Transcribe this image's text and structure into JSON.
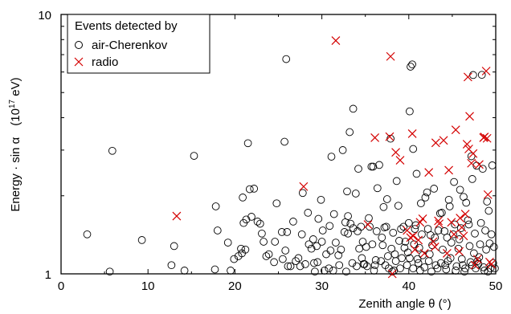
{
  "chart_data": {
    "type": "scatter",
    "xlabel": "Zenith angle θ (°)",
    "ylabel_main": "Energy · sin α",
    "ylabel_unit_prefix": "(10",
    "ylabel_unit_exp": "17",
    "ylabel_unit_suffix": " eV)",
    "xlim": [
      0,
      50
    ],
    "ylim": [
      1,
      10
    ],
    "yscale": "log",
    "x_ticks": [
      0,
      10,
      20,
      30,
      40,
      50
    ],
    "x_tick_labels": [
      "0",
      "10",
      "20",
      "30",
      "40",
      "50"
    ],
    "y_tick_labels": {
      "min": "1",
      "max": "10"
    },
    "grid": false,
    "legend": {
      "title": "Events detected by",
      "placement": "top-left",
      "entries": [
        {
          "label": "air-Cherenkov",
          "marker": "circle"
        },
        {
          "label": "radio",
          "marker": "x"
        }
      ]
    },
    "colors": {
      "cherenkov": "#000000",
      "radio": "#d40000"
    },
    "series": [
      {
        "name": "air-Cherenkov",
        "points": [
          [
            3.0,
            1.42
          ],
          [
            5.6,
            1.02
          ],
          [
            5.9,
            2.98
          ],
          [
            9.3,
            1.35
          ],
          [
            12.7,
            1.08
          ],
          [
            13.0,
            1.28
          ],
          [
            14.2,
            1.03
          ],
          [
            15.3,
            2.85
          ],
          [
            17.7,
            1.04
          ],
          [
            17.8,
            1.82
          ],
          [
            18.0,
            1.47
          ],
          [
            19.2,
            1.32
          ],
          [
            20.4,
            1.17
          ],
          [
            20.7,
            1.25
          ],
          [
            21.0,
            1.57
          ],
          [
            21.3,
            1.62
          ],
          [
            20.9,
            1.97
          ],
          [
            20.8,
            1.2
          ],
          [
            21.2,
            1.24
          ],
          [
            21.9,
            1.66
          ],
          [
            22.6,
            1.59
          ],
          [
            22.2,
            2.13
          ],
          [
            23.3,
            1.33
          ],
          [
            23.6,
            1.17
          ],
          [
            23.9,
            1.19
          ],
          [
            24.5,
            1.11
          ],
          [
            24.8,
            1.87
          ],
          [
            25.4,
            1.45
          ],
          [
            25.5,
            1.14
          ],
          [
            25.8,
            1.23
          ],
          [
            26.1,
            1.07
          ],
          [
            26.4,
            1.07
          ],
          [
            27.0,
            1.12
          ],
          [
            27.5,
            1.07
          ],
          [
            27.7,
            1.42
          ],
          [
            27.8,
            2.05
          ],
          [
            28.4,
            1.72
          ],
          [
            28.5,
            1.3
          ],
          [
            29.0,
            1.36
          ],
          [
            29.4,
            1.28
          ],
          [
            29.5,
            1.11
          ],
          [
            29.9,
            1.93
          ],
          [
            30.0,
            1.33
          ],
          [
            30.5,
            1.19
          ],
          [
            30.8,
            1.05
          ],
          [
            31.1,
            2.83
          ],
          [
            31.4,
            1.7
          ],
          [
            32.0,
            1.08
          ],
          [
            32.4,
            3.0
          ],
          [
            32.7,
            1.58
          ],
          [
            32.9,
            2.08
          ],
          [
            33.0,
            1.43
          ],
          [
            33.3,
            1.56
          ],
          [
            33.5,
            1.1
          ],
          [
            33.6,
            1.5
          ],
          [
            34.0,
            1.07
          ],
          [
            34.3,
            1.25
          ],
          [
            34.6,
            1.15
          ],
          [
            34.8,
            1.09
          ],
          [
            35.2,
            1.07
          ],
          [
            35.5,
            1.52
          ],
          [
            35.7,
            2.59
          ],
          [
            36.2,
            1.13
          ],
          [
            36.4,
            2.14
          ],
          [
            36.8,
            1.12
          ],
          [
            37.0,
            1.29
          ],
          [
            37.2,
            1.51
          ],
          [
            37.4,
            1.52
          ],
          [
            37.7,
            1.05
          ],
          [
            38.0,
            1.25
          ],
          [
            38.3,
            1.03
          ],
          [
            38.5,
            1.12
          ],
          [
            38.9,
            1.34
          ],
          [
            39.2,
            1.15
          ],
          [
            39.4,
            1.52
          ],
          [
            39.5,
            1.26
          ],
          [
            39.8,
            1.08
          ],
          [
            40.0,
            1.57
          ],
          [
            40.1,
            1.15
          ],
          [
            40.5,
            1.05
          ],
          [
            40.8,
            1.54
          ],
          [
            41.0,
            1.14
          ],
          [
            41.2,
            1.26
          ],
          [
            41.6,
            1.18
          ],
          [
            41.8,
            1.06
          ],
          [
            42.1,
            2.06
          ],
          [
            42.3,
            1.12
          ],
          [
            42.7,
            1.29
          ],
          [
            43.0,
            1.38
          ],
          [
            43.3,
            1.05
          ],
          [
            43.6,
            1.71
          ],
          [
            43.9,
            1.24
          ],
          [
            44.2,
            1.08
          ],
          [
            44.6,
            1.93
          ],
          [
            44.8,
            1.15
          ],
          [
            45.3,
            1.55
          ],
          [
            45.5,
            1.07
          ],
          [
            45.8,
            1.36
          ],
          [
            46.1,
            1.14
          ],
          [
            46.3,
            1.98
          ],
          [
            46.5,
            1.05
          ],
          [
            46.8,
            1.61
          ],
          [
            47.0,
            1.28
          ],
          [
            47.3,
            1.08
          ],
          [
            47.6,
            1.43
          ],
          [
            47.9,
            1.12
          ],
          [
            48.3,
            1.57
          ],
          [
            48.6,
            1.06
          ],
          [
            48.9,
            1.24
          ],
          [
            49.2,
            1.75
          ],
          [
            49.5,
            1.42
          ],
          [
            49.7,
            1.1
          ],
          [
            49.9,
            1.05
          ],
          [
            49.6,
            2.62
          ],
          [
            48.5,
            2.54
          ],
          [
            49.0,
            1.9
          ],
          [
            47.8,
            2.61
          ],
          [
            47.2,
            2.84
          ],
          [
            46.6,
            1.88
          ],
          [
            47.3,
            2.32
          ],
          [
            45.9,
            2.11
          ],
          [
            45.2,
            2.26
          ],
          [
            44.7,
            1.82
          ],
          [
            43.8,
            1.72
          ],
          [
            42.9,
            2.13
          ],
          [
            41.9,
            1.97
          ],
          [
            41.4,
            1.87
          ],
          [
            40.9,
            2.43
          ],
          [
            40.5,
            3.03
          ],
          [
            40.1,
            4.23
          ],
          [
            40.2,
            6.29
          ],
          [
            40.4,
            6.42
          ],
          [
            38.6,
            2.28
          ],
          [
            38.8,
            1.83
          ],
          [
            37.9,
            3.32
          ],
          [
            37.5,
            1.94
          ],
          [
            37.1,
            1.81
          ],
          [
            36.6,
            2.63
          ],
          [
            35.9,
            2.59
          ],
          [
            35.4,
            1.64
          ],
          [
            34.1,
            1.46
          ],
          [
            34.2,
            2.54
          ],
          [
            33.9,
            2.04
          ],
          [
            33.2,
            3.52
          ],
          [
            33.6,
            4.33
          ],
          [
            33.0,
            1.67
          ],
          [
            32.2,
            1.24
          ],
          [
            31.6,
            1.32
          ],
          [
            30.9,
            1.53
          ],
          [
            31.0,
            1.23
          ],
          [
            30.1,
            1.47
          ],
          [
            29.6,
            1.63
          ],
          [
            29.1,
            1.1
          ],
          [
            28.8,
            1.25
          ],
          [
            28.1,
            1.09
          ],
          [
            27.3,
            1.15
          ],
          [
            26.7,
            1.59
          ],
          [
            26.0,
            1.45
          ],
          [
            25.7,
            3.23
          ],
          [
            25.9,
            6.73
          ],
          [
            24.6,
            1.33
          ],
          [
            23.1,
            1.43
          ],
          [
            22.9,
            1.56
          ],
          [
            21.5,
            3.19
          ],
          [
            21.7,
            2.12
          ],
          [
            19.9,
            1.14
          ],
          [
            19.5,
            1.03
          ],
          [
            42.5,
            1.41
          ],
          [
            43.4,
            1.47
          ],
          [
            44.1,
            1.46
          ],
          [
            44.9,
            1.32
          ],
          [
            45.1,
            1.42
          ],
          [
            46.0,
            1.5
          ],
          [
            46.9,
            1.55
          ],
          [
            47.5,
            1.2
          ],
          [
            48.1,
            1.16
          ],
          [
            48.8,
            1.47
          ],
          [
            49.3,
            1.31
          ],
          [
            49.8,
            1.27
          ],
          [
            48.2,
            1.3
          ],
          [
            47.7,
            1.05
          ],
          [
            45.7,
            1.25
          ],
          [
            44.4,
            1.38
          ],
          [
            43.1,
            1.08
          ],
          [
            42.2,
            1.49
          ],
          [
            41.5,
            1.42
          ],
          [
            40.7,
            1.49
          ],
          [
            39.6,
            1.33
          ],
          [
            39.1,
            1.49
          ],
          [
            38.2,
            1.44
          ],
          [
            37.6,
            1.17
          ],
          [
            36.9,
            1.38
          ],
          [
            36.3,
            1.46
          ],
          [
            35.8,
            1.3
          ],
          [
            35.1,
            1.27
          ],
          [
            34.5,
            1.52
          ],
          [
            34.7,
            1.33
          ],
          [
            32.6,
            1.45
          ],
          [
            32.8,
            1.02
          ],
          [
            31.9,
            1.18
          ],
          [
            31.3,
            1.03
          ],
          [
            30.3,
            1.03
          ],
          [
            29.2,
            1.02
          ],
          [
            41.3,
            1.03
          ],
          [
            42.6,
            1.02
          ],
          [
            44.3,
            1.04
          ],
          [
            46.4,
            1.02
          ],
          [
            48.7,
            1.03
          ],
          [
            49.4,
            1.05
          ],
          [
            38.1,
            1.02
          ],
          [
            36.0,
            1.03
          ],
          [
            40.6,
            1.3
          ],
          [
            43.7,
            1.1
          ],
          [
            45.4,
            1.03
          ],
          [
            47.1,
            1.11
          ],
          [
            49.1,
            1.02
          ],
          [
            48.0,
            1.09
          ],
          [
            46.2,
            1.08
          ],
          [
            44.5,
            1.12
          ],
          [
            42.4,
            1.19
          ],
          [
            41.1,
            1.1
          ],
          [
            39.9,
            1.21
          ],
          [
            39.0,
            1.05
          ],
          [
            38.4,
            1.19
          ],
          [
            37.3,
            1.08
          ],
          [
            36.1,
            1.08
          ],
          [
            34.9,
            1.09
          ],
          [
            47.4,
            5.84
          ],
          [
            48.4,
            5.85
          ]
        ]
      },
      {
        "name": "radio",
        "points": [
          [
            13.3,
            1.67
          ],
          [
            27.9,
            2.17
          ],
          [
            31.6,
            7.93
          ],
          [
            35.3,
            1.55
          ],
          [
            36.1,
            3.35
          ],
          [
            37.8,
            3.38
          ],
          [
            37.9,
            6.89
          ],
          [
            38.5,
            2.94
          ],
          [
            39.0,
            2.74
          ],
          [
            40.4,
            3.47
          ],
          [
            40.7,
            1.24
          ],
          [
            41.3,
            1.58
          ],
          [
            41.6,
            1.63
          ],
          [
            42.3,
            2.46
          ],
          [
            43.1,
            3.2
          ],
          [
            43.5,
            1.56
          ],
          [
            44.0,
            3.27
          ],
          [
            44.6,
            2.51
          ],
          [
            45.4,
            3.59
          ],
          [
            45.9,
            1.64
          ],
          [
            46.1,
            1.51
          ],
          [
            46.7,
            3.16
          ],
          [
            46.8,
            5.74
          ],
          [
            47.0,
            4.05
          ],
          [
            46.9,
            3.03
          ],
          [
            47.2,
            2.67
          ],
          [
            48.1,
            2.64
          ],
          [
            48.6,
            3.35
          ],
          [
            48.7,
            3.37
          ],
          [
            48.9,
            6.05
          ],
          [
            49.1,
            2.02
          ],
          [
            49.3,
            1.11
          ],
          [
            49.5,
            1.09
          ],
          [
            47.6,
            1.08
          ],
          [
            47.9,
            1.14
          ],
          [
            46.3,
            1.4
          ],
          [
            45.8,
            1.22
          ],
          [
            45.2,
            1.42
          ],
          [
            44.4,
            1.2
          ],
          [
            43.0,
            1.27
          ],
          [
            42.8,
            1.33
          ],
          [
            41.1,
            1.35
          ],
          [
            40.5,
            1.4
          ],
          [
            40.2,
            1.38
          ],
          [
            39.8,
            1.47
          ],
          [
            38.1,
            1.0
          ],
          [
            41.8,
            1.2
          ],
          [
            43.4,
            1.6
          ],
          [
            44.9,
            1.58
          ],
          [
            46.5,
            1.7
          ],
          [
            47.4,
            2.91
          ],
          [
            49.0,
            3.33
          ]
        ]
      }
    ]
  }
}
